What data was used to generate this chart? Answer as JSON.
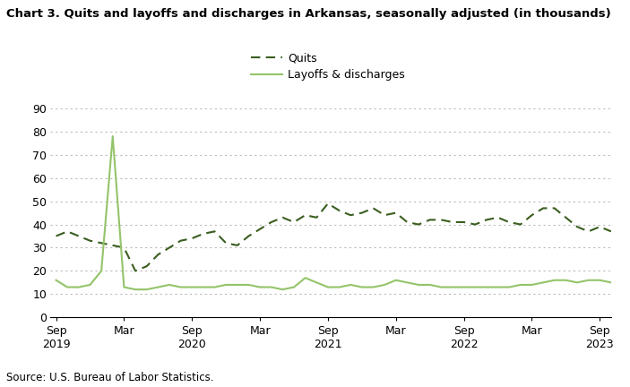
{
  "title": "Chart 3. Quits and layoffs and discharges in Arkansas, seasonally adjusted (in thousands)",
  "source": "Source: U.S. Bureau of Labor Statistics.",
  "quits_label": "Quits",
  "layoffs_label": "Layoffs & discharges",
  "quits_color": "#3a5e1f",
  "layoffs_color": "#93c46a",
  "ylim": [
    0,
    90
  ],
  "yticks": [
    0,
    10,
    20,
    30,
    40,
    50,
    60,
    70,
    80,
    90
  ],
  "xtick_labels": [
    "Sep\n2019",
    "Mar",
    "Sep\n2020",
    "Mar",
    "Sep\n2021",
    "Mar",
    "Sep\n2022",
    "Mar",
    "Sep\n2023"
  ],
  "xtick_positions": [
    0,
    6,
    12,
    18,
    24,
    30,
    36,
    42,
    48
  ],
  "xlim": [
    -0.5,
    49
  ],
  "quits": [
    35,
    37,
    35,
    33,
    32,
    31,
    30,
    20,
    22,
    27,
    30,
    33,
    34,
    36,
    37,
    32,
    31,
    35,
    38,
    41,
    43,
    41,
    44,
    43,
    49,
    46,
    44,
    45,
    47,
    44,
    45,
    41,
    40,
    42,
    42,
    41,
    41,
    40,
    42,
    43,
    41,
    40,
    44,
    47,
    47,
    43,
    39,
    37,
    39,
    37
  ],
  "layoffs": [
    16,
    13,
    13,
    14,
    20,
    78,
    13,
    12,
    12,
    13,
    14,
    13,
    13,
    13,
    13,
    14,
    14,
    14,
    13,
    13,
    12,
    13,
    17,
    15,
    13,
    13,
    14,
    13,
    13,
    14,
    16,
    15,
    14,
    14,
    13,
    13,
    13,
    13,
    13,
    13,
    13,
    14,
    14,
    15,
    16,
    16,
    15,
    16,
    16,
    15
  ]
}
